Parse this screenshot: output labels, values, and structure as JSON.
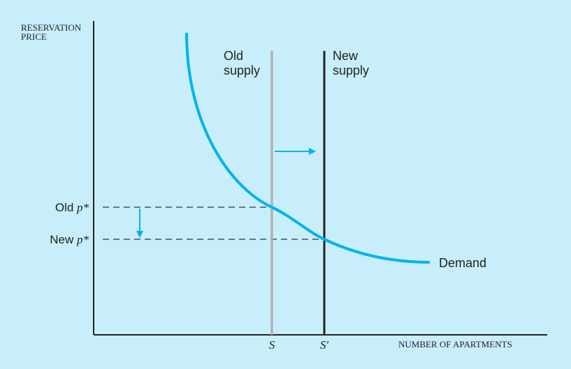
{
  "axes": {
    "y_title_line1": "RESERVATION",
    "y_title_line2": "PRICE",
    "x_title": "NUMBER OF APARTMENTS"
  },
  "curves": {
    "old_supply_line1": "Old",
    "old_supply_line2": "supply",
    "new_supply_line1": "New",
    "new_supply_line2": "supply",
    "demand": "Demand"
  },
  "price_labels": {
    "old_prefix": "Old ",
    "new_prefix": "New ",
    "p_symbol": "p*"
  },
  "quantity_labels": {
    "old": "S",
    "new": "S′"
  },
  "colors": {
    "background": "#c8eefb",
    "demand": "#00b4ea",
    "old_supply": "#b0b0b0",
    "new_supply": "#222222",
    "axes": "#222222",
    "arrow": "#00b4ea"
  }
}
